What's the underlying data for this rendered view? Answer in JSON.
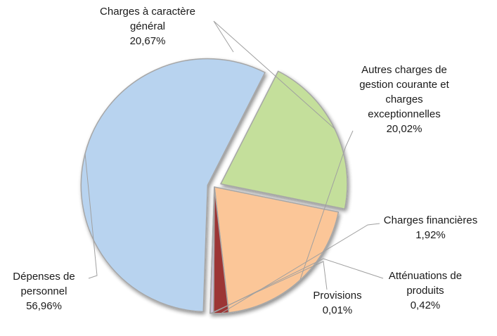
{
  "chart_data": {
    "type": "pie",
    "title": "",
    "slices": [
      {
        "label": "Charges à caractère\ngénéral",
        "value": 20.67,
        "value_label": "20,67%",
        "color": "#c4df9b",
        "exploded": true
      },
      {
        "label": "Autres charges de\ngestion courante et\ncharges\nexceptionnelles",
        "value": 20.02,
        "value_label": "20,02%",
        "color": "#fbc698"
      },
      {
        "label": "Charges financières",
        "value": 1.92,
        "value_label": "1,92%",
        "color": "#9c3634"
      },
      {
        "label": "Atténuations de\nproduits",
        "value": 0.42,
        "value_label": "0,42%",
        "color": "#ccc1da"
      },
      {
        "label": "Provisions",
        "value": 0.01,
        "value_label": "0,01%",
        "color": "#4f81bd"
      },
      {
        "label": "Dépenses de\npersonnel",
        "value": 56.96,
        "value_label": "56,96%",
        "color": "#b8d3ef",
        "exploded": true
      }
    ],
    "legend": "none"
  }
}
